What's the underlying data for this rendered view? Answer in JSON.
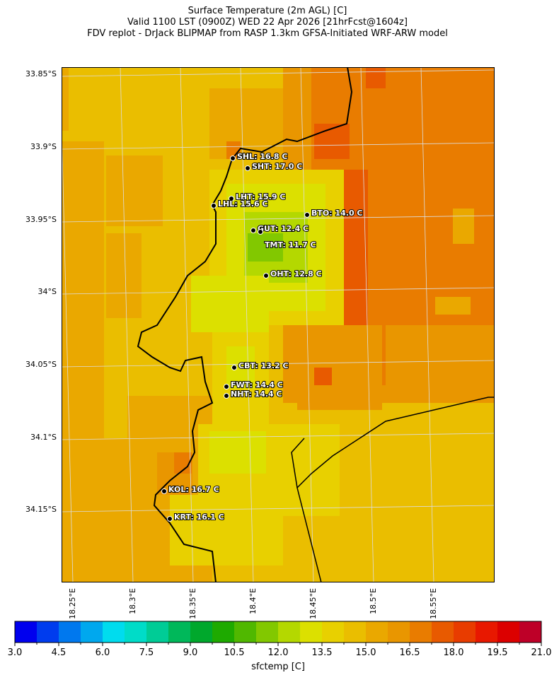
{
  "title": {
    "line1": "Surface Temperature (2m AGL) [C]",
    "line2": "Valid 1100 LST (0900Z) WED 22 Apr 2026 [21hrFcst@1604z]",
    "line3": "FDV replot - DrJack BLIPMAP from RASP 1.3km GFSA-Initiated WRF-ARW model"
  },
  "map": {
    "lat_ticks": [
      "33.85°S",
      "33.9°S",
      "33.95°S",
      "34°S",
      "34.05°S",
      "34.1°S",
      "34.15°S"
    ],
    "lon_ticks": [
      "18.25°E",
      "18.3°E",
      "18.35°E",
      "18.4°E",
      "18.45°E",
      "18.5°E",
      "18.55°E"
    ],
    "stations": [
      {
        "label": "SHL: 16.8 C"
      },
      {
        "label": "SHT: 17.0 C"
      },
      {
        "label": "LHT: 15.9 C"
      },
      {
        "label": "LHL: 15.6 C"
      },
      {
        "label": "BTO: 14.0 C"
      },
      {
        "label": "GUT: 12.4 C"
      },
      {
        "label": "TMT: 11.7 C"
      },
      {
        "label": "OHT: 12.8 C"
      },
      {
        "label": "CBT: 13.2 C"
      },
      {
        "label": "FWT: 14.4 C"
      },
      {
        "label": "NHT: 14.4 C"
      },
      {
        "label": "KOL: 16.7 C"
      },
      {
        "label": "KRT: 16.1 C"
      }
    ]
  },
  "colorbar": {
    "label": "sfctemp [C]",
    "min": 3.0,
    "max": 21.0,
    "ticks": [
      "3.0",
      "4.5",
      "6.0",
      "7.5",
      "9.0",
      "10.5",
      "12.0",
      "13.5",
      "15.0",
      "16.5",
      "18.0",
      "19.5",
      "21.0"
    ],
    "colors": [
      "#0000ee",
      "#003cee",
      "#0078ee",
      "#00a8ee",
      "#00dcee",
      "#00dcc8",
      "#00cc96",
      "#00b85a",
      "#00a82c",
      "#1eaa00",
      "#50b800",
      "#82c800",
      "#b4d800",
      "#dce000",
      "#e8d000",
      "#eabe00",
      "#eaa800",
      "#e99600",
      "#e97c00",
      "#e85a00",
      "#e83c00",
      "#e81800",
      "#dc0000",
      "#be0028"
    ]
  }
}
